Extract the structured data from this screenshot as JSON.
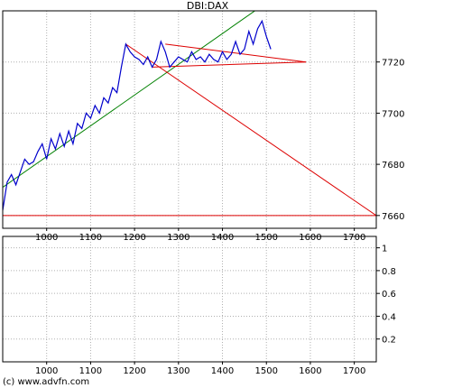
{
  "chart_data": [
    {
      "type": "line",
      "title": "DBI:DAX",
      "xlim": [
        900,
        1750
      ],
      "ylim": [
        7655,
        7740
      ],
      "x_ticks": [
        1000,
        1100,
        1200,
        1300,
        1400,
        1500,
        1600,
        1700
      ],
      "y_ticks": [
        7660,
        7680,
        7700,
        7720
      ],
      "y_tick_labels": [
        "7660",
        "7680",
        "7700",
        "7720"
      ],
      "x_tick_labels": [
        "1000",
        "1100",
        "1200",
        "1300",
        "1400",
        "1500",
        "1600",
        "1700"
      ],
      "grid": true,
      "series": [
        {
          "color": "#0000cc",
          "x": [
            900,
            910,
            920,
            930,
            940,
            950,
            960,
            970,
            980,
            990,
            1000,
            1010,
            1020,
            1030,
            1040,
            1050,
            1060,
            1070,
            1080,
            1090,
            1100,
            1110,
            1120,
            1130,
            1140,
            1150,
            1160,
            1170,
            1180,
            1190,
            1200,
            1210,
            1220,
            1230,
            1240,
            1250,
            1260,
            1270,
            1280,
            1290,
            1300,
            1310,
            1320,
            1330,
            1340,
            1350,
            1360,
            1370,
            1380,
            1390,
            1400,
            1410,
            1420,
            1430,
            1440,
            1450,
            1460,
            1470,
            1480,
            1490,
            1500,
            1510
          ],
          "y": [
            7662,
            7673,
            7676,
            7672,
            7677,
            7682,
            7680,
            7681,
            7685,
            7688,
            7682,
            7690,
            7686,
            7692,
            7687,
            7693,
            7688,
            7696,
            7694,
            7700,
            7698,
            7703,
            7700,
            7706,
            7704,
            7710,
            7708,
            7718,
            7727,
            7724,
            7722,
            7721,
            7719,
            7722,
            7718,
            7721,
            7728,
            7724,
            7718,
            7720,
            7722,
            7721,
            7720,
            7724,
            7721,
            7722,
            7720,
            7723,
            7721,
            7720,
            7724,
            7721,
            7723,
            7728,
            7723,
            7725,
            7732,
            7727,
            7733,
            7736,
            7730,
            7725
          ]
        }
      ],
      "trendlines": [
        {
          "color": "#008000",
          "from": [
            900,
            7671
          ],
          "to": [
            1640,
            7760
          ]
        },
        {
          "color": "#dd0000",
          "from": [
            1180,
            7727
          ],
          "to": [
            1750,
            7660
          ]
        },
        {
          "color": "#dd0000",
          "from": [
            1270,
            7727
          ],
          "to": [
            1590,
            7720
          ]
        },
        {
          "color": "#dd0000",
          "from": [
            1240,
            7718
          ],
          "to": [
            1590,
            7720
          ]
        },
        {
          "color": "#dd0000",
          "from": [
            900,
            7660
          ],
          "to": [
            1750,
            7660
          ]
        }
      ]
    },
    {
      "type": "line",
      "xlim": [
        900,
        1750
      ],
      "ylim": [
        0,
        1.1
      ],
      "x_ticks": [
        1000,
        1100,
        1200,
        1300,
        1400,
        1500,
        1600,
        1700
      ],
      "x_tick_labels": [
        "1000",
        "1100",
        "1200",
        "1300",
        "1400",
        "1500",
        "1600",
        "1700"
      ],
      "y_ticks": [
        0.2,
        0.4,
        0.6,
        0.8,
        1.0
      ],
      "y_tick_labels": [
        "0.2",
        "0.4",
        "0.6",
        "0.8",
        "1"
      ],
      "grid": true,
      "series": []
    }
  ],
  "credit": "(c) www.advfn.com"
}
